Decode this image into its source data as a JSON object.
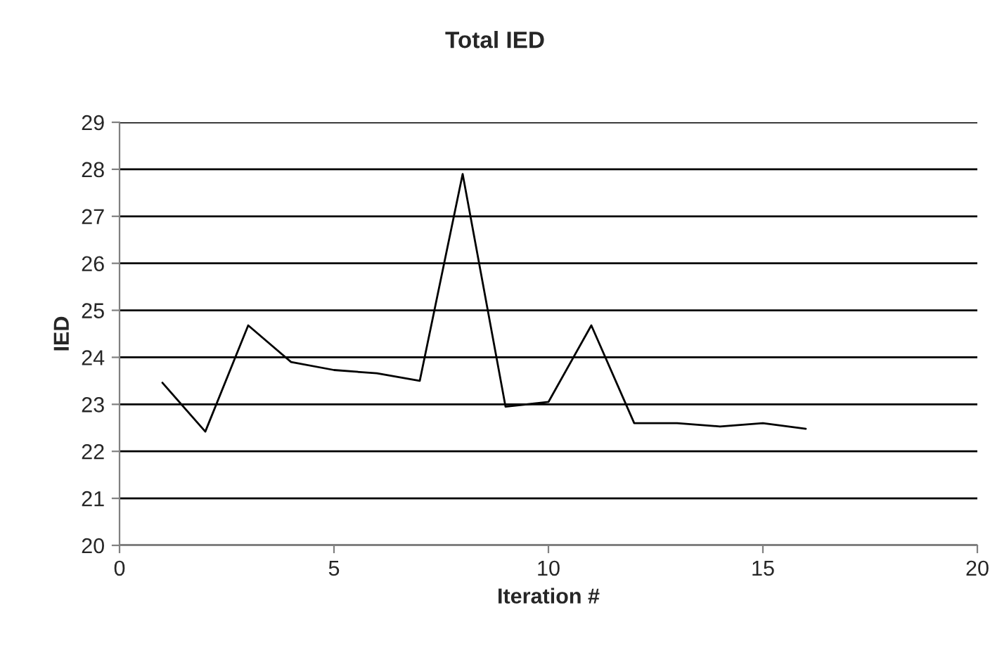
{
  "chart_data": {
    "type": "line",
    "title": "Total IED",
    "xlabel": "Iteration #",
    "ylabel": "IED",
    "x": [
      1,
      2,
      3,
      4,
      5,
      6,
      7,
      8,
      9,
      10,
      11,
      12,
      13,
      14,
      15,
      16
    ],
    "series": [
      {
        "color": "#000000",
        "values": [
          23.46,
          22.42,
          24.68,
          23.9,
          23.73,
          23.66,
          23.5,
          27.9,
          22.95,
          23.05,
          24.68,
          22.6,
          22.6,
          22.53,
          22.6,
          22.48
        ]
      }
    ],
    "xlim": [
      0,
      20
    ],
    "xticks": [
      0,
      5,
      10,
      15,
      20
    ],
    "ylim": [
      20,
      29
    ],
    "yticks": [
      20,
      21,
      22,
      23,
      24,
      25,
      26,
      27,
      28,
      29
    ],
    "grid": "y",
    "legend": false,
    "marker": "none",
    "line_style": "solid"
  }
}
